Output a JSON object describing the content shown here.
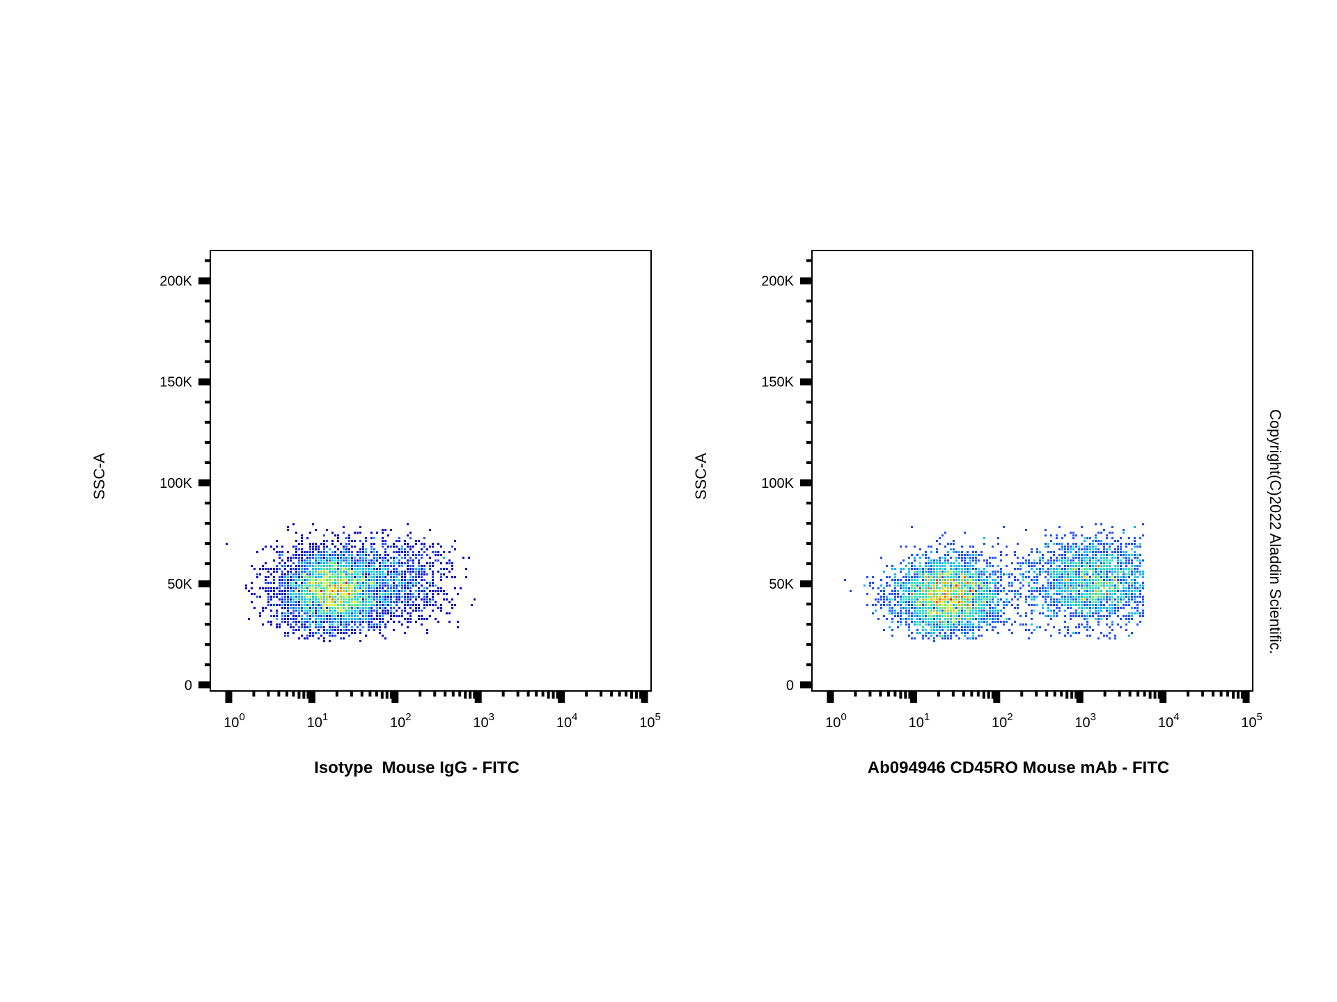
{
  "watermark": "Copyright(C)2022 Aladdin Scientific.",
  "density_colors": [
    "#0000c8",
    "#1e4bff",
    "#00b4ff",
    "#22e0c0",
    "#64f064",
    "#dcf032",
    "#ffb400",
    "#ff5a00",
    "#e60000"
  ],
  "chart_data": [
    {
      "type": "scatter",
      "name": "isotype-plot",
      "xlabel": "Isotype  Mouse IgG - FITC",
      "ylabel": "SSC-A",
      "x_scale": "log",
      "xlim": [
        0.6,
        120000
      ],
      "ylim": [
        -3000,
        215000
      ],
      "x_ticks": [
        {
          "value": 1,
          "base": "10",
          "exp": "0"
        },
        {
          "value": 10,
          "base": "10",
          "exp": "1"
        },
        {
          "value": 100,
          "base": "10",
          "exp": "2"
        },
        {
          "value": 1000,
          "base": "10",
          "exp": "3"
        },
        {
          "value": 10000,
          "base": "10",
          "exp": "4"
        },
        {
          "value": 100000,
          "base": "10",
          "exp": "5"
        }
      ],
      "y_ticks": [
        {
          "value": 0,
          "label": "0"
        },
        {
          "value": 50000,
          "label": "50K"
        },
        {
          "value": 100000,
          "label": "100K"
        },
        {
          "value": 150000,
          "label": "150K"
        },
        {
          "value": 200000,
          "label": "200K"
        }
      ],
      "populations": [
        {
          "x_center": 18,
          "x_spread_decades": 0.33,
          "y_center": 47000,
          "y_spread": 10000,
          "weight": 0.82
        },
        {
          "x_center": 110,
          "x_spread_decades": 0.35,
          "y_center": 52000,
          "y_spread": 11000,
          "weight": 0.18
        }
      ],
      "x_max_value": 900,
      "y_max_value": 80000
    },
    {
      "type": "scatter",
      "name": "cd45ro-plot",
      "xlabel": "Ab094946 CD45RO Mouse mAb - FITC",
      "ylabel": "SSC-A",
      "x_scale": "log",
      "xlim": [
        0.6,
        120000
      ],
      "ylim": [
        -3000,
        215000
      ],
      "x_ticks": [
        {
          "value": 1,
          "base": "10",
          "exp": "0"
        },
        {
          "value": 10,
          "base": "10",
          "exp": "1"
        },
        {
          "value": 100,
          "base": "10",
          "exp": "2"
        },
        {
          "value": 1000,
          "base": "10",
          "exp": "3"
        },
        {
          "value": 10000,
          "base": "10",
          "exp": "4"
        },
        {
          "value": 100000,
          "base": "10",
          "exp": "5"
        }
      ],
      "y_ticks": [
        {
          "value": 0,
          "label": "0"
        },
        {
          "value": 50000,
          "label": "50K"
        },
        {
          "value": 100000,
          "label": "100K"
        },
        {
          "value": 150000,
          "label": "150K"
        },
        {
          "value": 200000,
          "label": "200K"
        }
      ],
      "populations": [
        {
          "x_center": 25,
          "x_spread_decades": 0.33,
          "y_center": 44000,
          "y_spread": 10000,
          "weight": 0.58
        },
        {
          "x_center": 1500,
          "x_spread_decades": 0.42,
          "y_center": 51000,
          "y_spread": 11000,
          "weight": 0.42
        }
      ],
      "x_max_value": 6000,
      "y_max_value": 80000
    }
  ]
}
